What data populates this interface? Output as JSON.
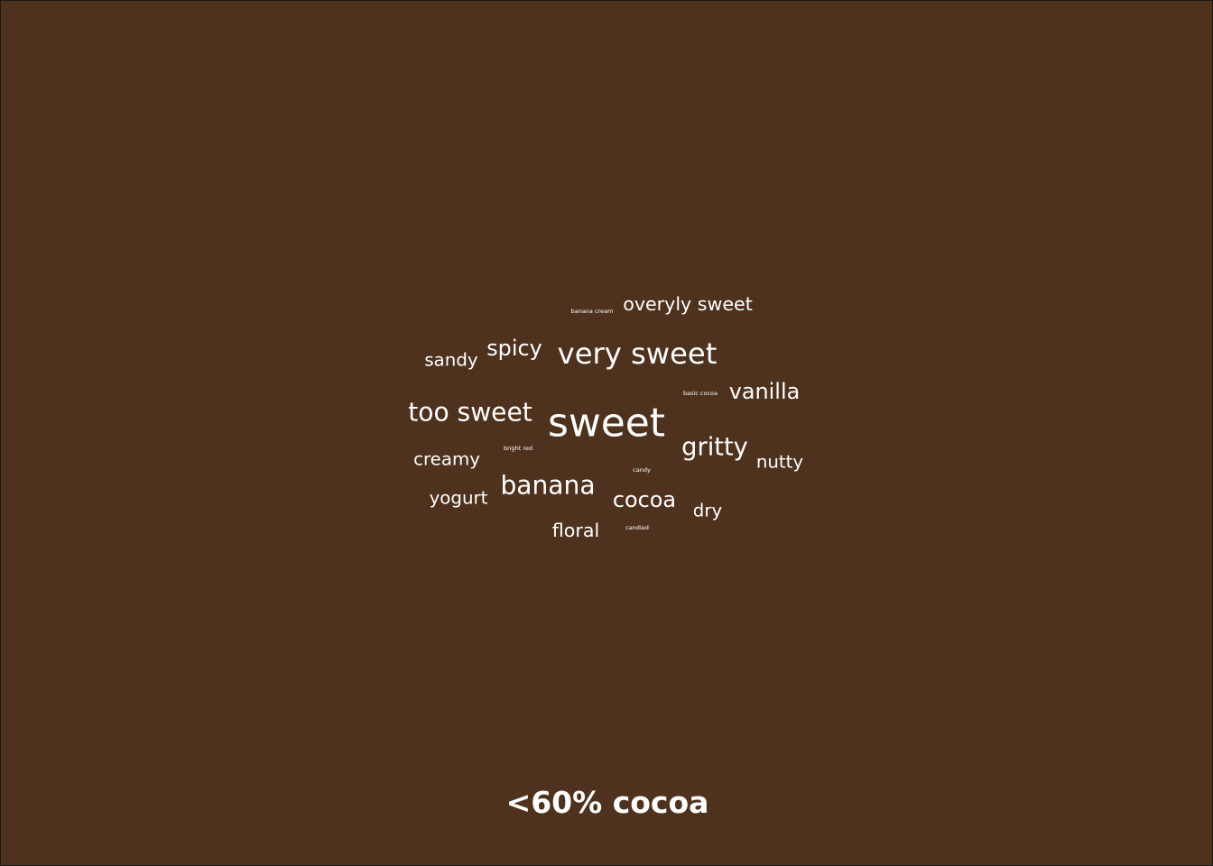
{
  "chart_data": {
    "type": "word-cloud",
    "title": "<60% cocoa",
    "background_color": "#4e321e",
    "text_color": "#ffffff",
    "words": [
      {
        "text": "sweet",
        "weight": 10
      },
      {
        "text": "very sweet",
        "weight": 7.2
      },
      {
        "text": "too sweet",
        "weight": 6.2
      },
      {
        "text": "banana",
        "weight": 6.2
      },
      {
        "text": "gritty",
        "weight": 6.0
      },
      {
        "text": "spicy",
        "weight": 5.2
      },
      {
        "text": "vanilla",
        "weight": 5.2
      },
      {
        "text": "cocoa",
        "weight": 5.2
      },
      {
        "text": "overyly sweet",
        "weight": 4.4
      },
      {
        "text": "floral",
        "weight": 4.4
      },
      {
        "text": "sandy",
        "weight": 4.2
      },
      {
        "text": "creamy",
        "weight": 4.2
      },
      {
        "text": "yogurt",
        "weight": 4.2
      },
      {
        "text": "nutty",
        "weight": 4.2
      },
      {
        "text": "dry",
        "weight": 4.2
      },
      {
        "text": "banana cream",
        "weight": 1
      },
      {
        "text": "basic cocoa",
        "weight": 1
      },
      {
        "text": "bright red",
        "weight": 1
      },
      {
        "text": "candy",
        "weight": 1
      },
      {
        "text": "candied",
        "weight": 1
      }
    ]
  }
}
